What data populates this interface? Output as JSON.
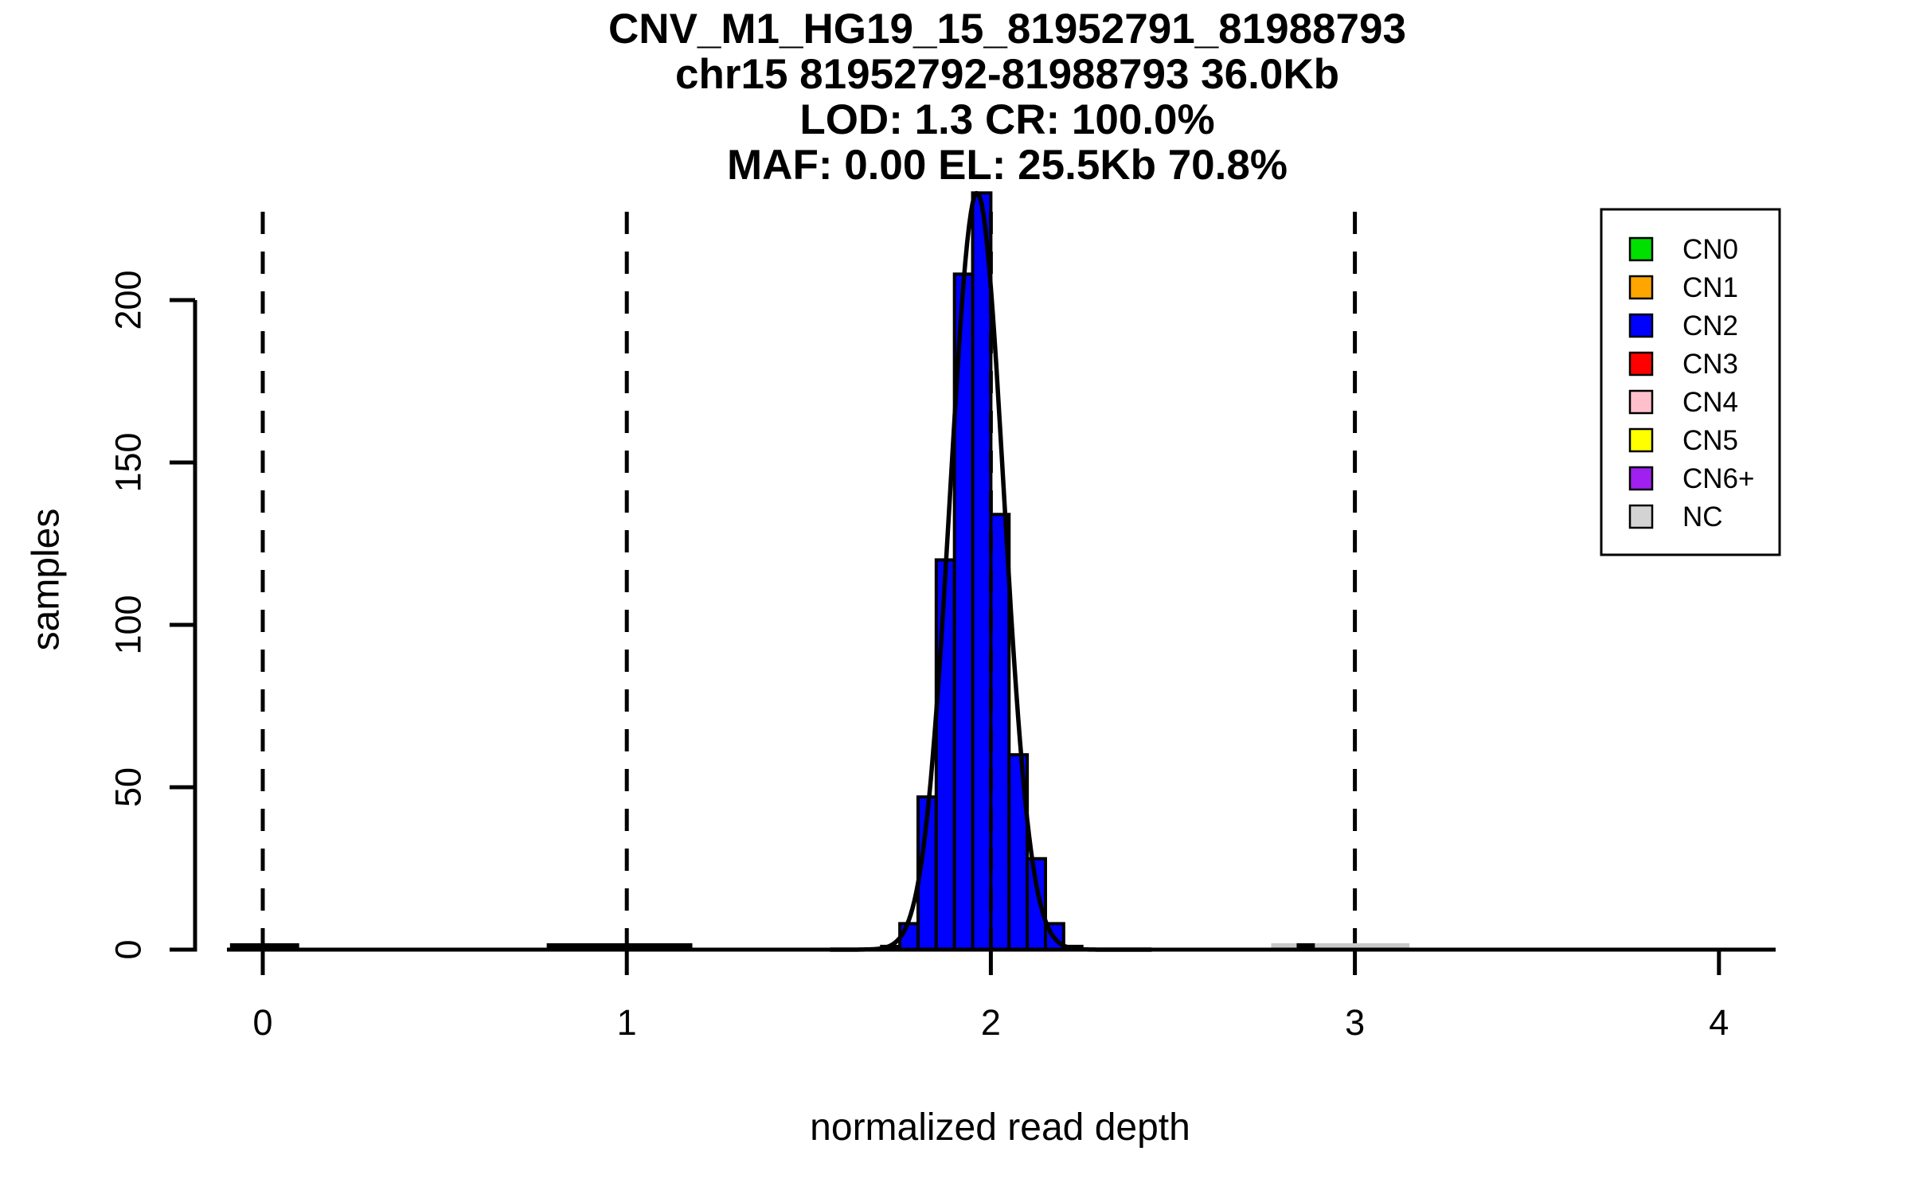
{
  "title": {
    "line1": "CNV_M1_HG19_15_81952791_81988793",
    "line2": "chr15 81952792-81988793 36.0Kb",
    "line3": "LOD: 1.3 CR: 100.0%",
    "line4": "MAF: 0.00 EL: 25.5Kb 70.8%"
  },
  "axes": {
    "x_label": "normalized read depth",
    "y_label": "samples",
    "x_tick_labels": [
      "0",
      "1",
      "2",
      "3",
      "4"
    ],
    "y_tick_labels": [
      "0",
      "50",
      "100",
      "150",
      "200"
    ]
  },
  "legend": {
    "items": [
      {
        "label": "CN0",
        "color": "#00E000"
      },
      {
        "label": "CN1",
        "color": "#FFA500"
      },
      {
        "label": "CN2",
        "color": "#0000FF"
      },
      {
        "label": "CN3",
        "color": "#FF0000"
      },
      {
        "label": "CN4",
        "color": "#FFC0CB"
      },
      {
        "label": "CN5",
        "color": "#FFFF00"
      },
      {
        "label": "CN6+",
        "color": "#A020F0"
      },
      {
        "label": "NC",
        "color": "#D3D3D3"
      }
    ]
  },
  "chart_data": {
    "type": "bar",
    "subtype": "histogram-with-density",
    "title": "CNV_M1_HG19_15_81952791_81988793",
    "subtitle_lines": [
      "chr15 81952792-81988793 36.0Kb",
      "LOD: 1.3 CR: 100.0%",
      "MAF: 0.00 EL: 25.5Kb 70.8%"
    ],
    "xlabel": "normalized read depth",
    "ylabel": "samples",
    "xlim": [
      -0.1,
      4.16
    ],
    "ylim": [
      0,
      227
    ],
    "x_ticks": [
      0,
      1,
      2,
      3,
      4
    ],
    "y_ticks": [
      0,
      50,
      100,
      150,
      200
    ],
    "grid": false,
    "legend_position": "top-right",
    "histogram": {
      "series": "CN2",
      "color": "#0000FF",
      "bin_width": 0.05,
      "bin_left_edges": [
        1.7,
        1.75,
        1.8,
        1.85,
        1.9,
        1.95,
        2.0,
        2.05,
        2.1,
        2.15,
        2.2
      ],
      "counts": [
        1,
        8,
        47,
        120,
        208,
        233,
        134,
        60,
        28,
        8,
        1
      ]
    },
    "density_curve": {
      "color": "#000000",
      "shape": "gaussian",
      "mu": 1.962,
      "sigma": 0.0735,
      "peak": 233,
      "x_from": 1.56,
      "x_to": 2.44
    },
    "baseline": {
      "x_from": -0.1,
      "x_to": 4.155
    },
    "vlines": {
      "x": [
        0,
        1,
        2,
        3
      ],
      "style": "dashed",
      "color": "#000000"
    },
    "baseline_bumps": [
      {
        "x_from": -0.09,
        "x_to": 0.1,
        "color": "#000000"
      },
      {
        "x_from": 0.78,
        "x_to": 1.18,
        "color": "#000000"
      },
      {
        "x_from": 2.77,
        "x_to": 3.15,
        "color": "#C9C9C9"
      },
      {
        "x_from": 2.84,
        "x_to": 2.89,
        "color": "#000000"
      }
    ]
  }
}
